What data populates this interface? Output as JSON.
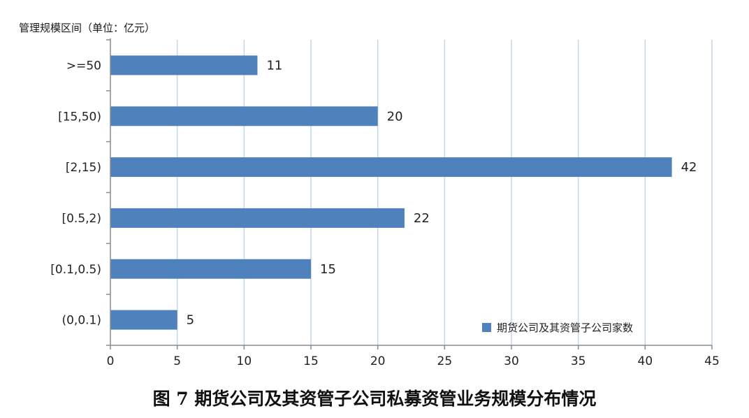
{
  "chart_data": {
    "type": "bar",
    "orientation": "horizontal",
    "ylabel": "管理规模区间（单位：亿元）",
    "caption": "图 7   期货公司及其资管子公司私募资管业务规模分布情况",
    "categories": [
      ">=50",
      "[15,50)",
      "[2,15)",
      "[0.5,2)",
      "[0.1,0.5)",
      "(0,0.1)"
    ],
    "series": [
      {
        "name": "期货公司及其资管子公司家数",
        "values": [
          11,
          20,
          42,
          22,
          15,
          5
        ],
        "color": "#4F81BD"
      }
    ],
    "xlim": [
      0,
      45
    ],
    "xticks": [
      0,
      5,
      10,
      15,
      20,
      25,
      30,
      35,
      40,
      45
    ],
    "grid": "vertical",
    "grid_color": "#c5d5ea",
    "legend_position": "bottom-right"
  }
}
